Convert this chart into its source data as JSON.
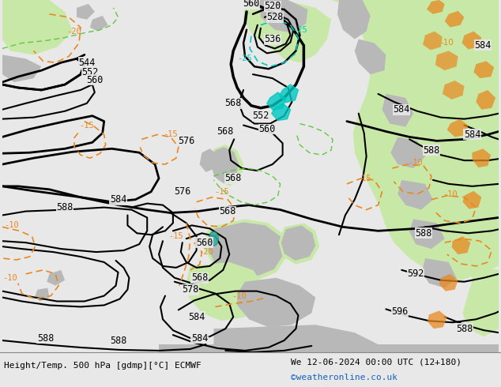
{
  "title_left": "Height/Temp. 500 hPa [gdmp][°C] ECMWF",
  "title_right": "We 12-06-2024 00:00 UTC (12+180)",
  "copyright": "©weatheronline.co.uk",
  "ocean_color": "#e8e8e8",
  "land_green_color": "#c8e8a8",
  "land_gray_color": "#b8b8b8",
  "bottom_bar_color": "#e8e8e8",
  "black": "#000000",
  "orange": "#e88820",
  "cyan_color": "#00c8c0",
  "green_line_color": "#60c840",
  "copyright_color": "#1860c0"
}
